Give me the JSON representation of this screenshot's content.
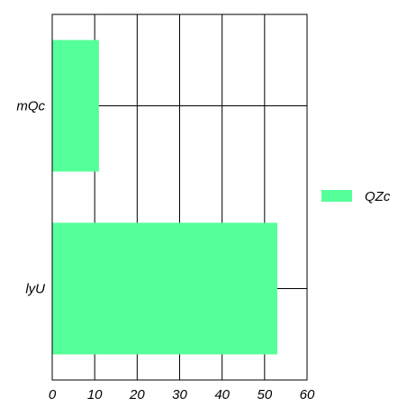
{
  "chart_data": {
    "type": "bar",
    "orientation": "horizontal",
    "categories": [
      "mQc",
      "lyU"
    ],
    "series": [
      {
        "name": "QZc",
        "values": [
          11,
          53
        ],
        "color": "#55ff99"
      }
    ],
    "title": "",
    "xlabel": "",
    "ylabel": "",
    "xlim": [
      0,
      60
    ],
    "xticks": [
      "0",
      "10",
      "20",
      "30",
      "40",
      "50",
      "60"
    ],
    "grid": true,
    "legend_position": "right"
  }
}
